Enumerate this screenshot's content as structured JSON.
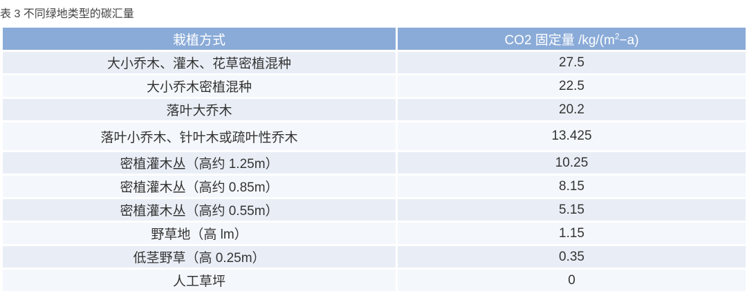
{
  "caption": "表 3  不同绿地类型的碳汇量",
  "colors": {
    "header_bg": "#8aabd8",
    "row_odd": "#e9eef6",
    "row_even": "#f4f7fb"
  },
  "table": {
    "headers": {
      "method": "栽植方式",
      "co2_prefix": "CO2 固定量 /kg/(m",
      "co2_sup": "2",
      "co2_suffix": "−a)"
    },
    "rows": [
      {
        "method": "大小乔木、灌木、花草密植混种",
        "value": "27.5"
      },
      {
        "method": "大小乔木密植混种",
        "value": "22.5"
      },
      {
        "method": "落叶大乔木",
        "value": "20.2"
      },
      {
        "method": "落叶小乔木、针叶木或疏叶性乔木",
        "value": "13.425"
      },
      {
        "method": "密植灌木丛（高约 1.25m）",
        "value": "10.25"
      },
      {
        "method": "密植灌木丛（高约 0.85m）",
        "value": "8.15"
      },
      {
        "method": "密植灌木丛（高约 0.55m）",
        "value": "5.15"
      },
      {
        "method": "野草地（高 lm）",
        "value": "1.15"
      },
      {
        "method": "低茎野草（高 0.25m）",
        "value": "0.35"
      },
      {
        "method": "人工草坪",
        "value": "0"
      }
    ]
  }
}
